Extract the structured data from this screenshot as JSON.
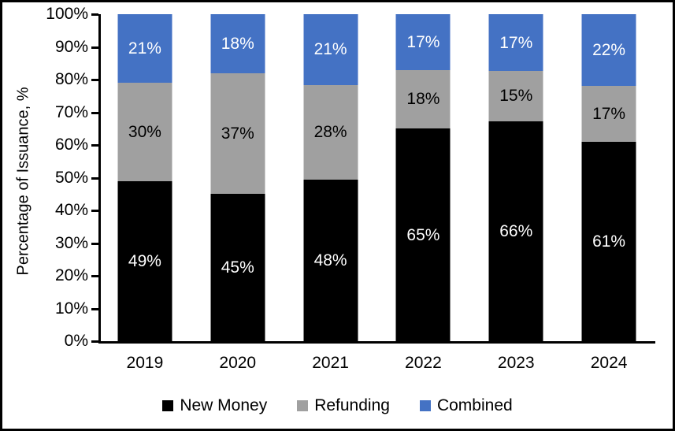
{
  "chart_data": {
    "type": "bar",
    "stacked": true,
    "title": "",
    "xlabel": "",
    "ylabel": "Percentage of Issuance, %",
    "ylim": [
      0,
      100
    ],
    "ytick_step": 10,
    "grid": false,
    "legend_position": "bottom",
    "value_suffix": "%",
    "categories": [
      "2019",
      "2020",
      "2021",
      "2022",
      "2023",
      "2024"
    ],
    "series": [
      {
        "name": "New Money",
        "color": "#000000",
        "label_color": "#ffffff",
        "values": [
          49,
          45,
          48,
          65,
          66,
          61
        ]
      },
      {
        "name": "Refunding",
        "color": "#A0A0A0",
        "label_color": "#000000",
        "values": [
          30,
          37,
          28,
          18,
          15,
          17
        ]
      },
      {
        "name": "Combined",
        "color": "#4472C4",
        "label_color": "#ffffff",
        "values": [
          21,
          18,
          21,
          17,
          17,
          22
        ]
      }
    ]
  },
  "axis": {
    "yticks": [
      "0%",
      "10%",
      "20%",
      "30%",
      "40%",
      "50%",
      "60%",
      "70%",
      "80%",
      "90%",
      "100%"
    ]
  }
}
